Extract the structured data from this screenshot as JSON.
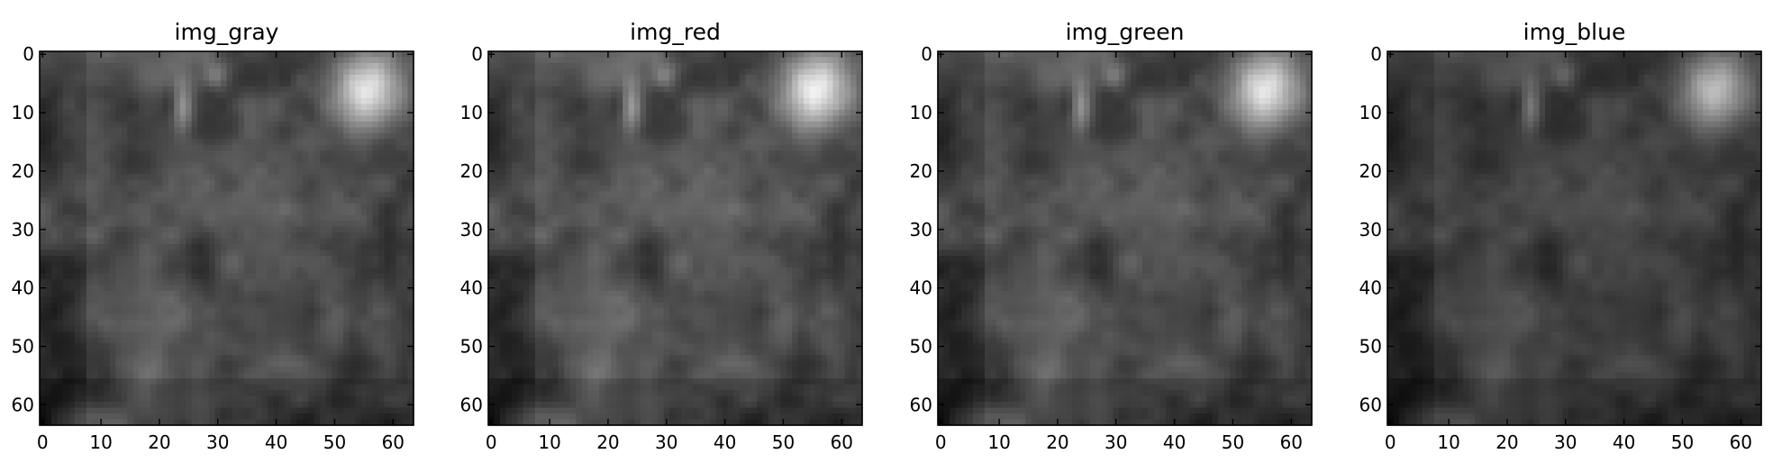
{
  "chart_data": [
    {
      "type": "heatmap",
      "title": "img_gray",
      "colormap": "gray",
      "image_size": [
        64,
        64
      ],
      "xlim": [
        -0.5,
        63.5
      ],
      "ylim": [
        63.5,
        -0.5
      ],
      "xticks": [
        0,
        10,
        20,
        30,
        40,
        50,
        60
      ],
      "yticks": [
        0,
        10,
        20,
        30,
        40,
        50,
        60
      ],
      "xtick_labels": [
        "0",
        "10",
        "20",
        "30",
        "40",
        "50",
        "60"
      ],
      "ytick_labels": [
        "0",
        "10",
        "20",
        "30",
        "40",
        "50",
        "60"
      ],
      "brightness": 1.0
    },
    {
      "type": "heatmap",
      "title": "img_red",
      "colormap": "gray",
      "image_size": [
        64,
        64
      ],
      "xlim": [
        -0.5,
        63.5
      ],
      "ylim": [
        63.5,
        -0.5
      ],
      "xticks": [
        0,
        10,
        20,
        30,
        40,
        50,
        60
      ],
      "yticks": [
        0,
        10,
        20,
        30,
        40,
        50,
        60
      ],
      "xtick_labels": [
        "0",
        "10",
        "20",
        "30",
        "40",
        "50",
        "60"
      ],
      "ytick_labels": [
        "0",
        "10",
        "20",
        "30",
        "40",
        "50",
        "60"
      ],
      "brightness": 1.05
    },
    {
      "type": "heatmap",
      "title": "img_green",
      "colormap": "gray",
      "image_size": [
        64,
        64
      ],
      "xlim": [
        -0.5,
        63.5
      ],
      "ylim": [
        63.5,
        -0.5
      ],
      "xticks": [
        0,
        10,
        20,
        30,
        40,
        50,
        60
      ],
      "yticks": [
        0,
        10,
        20,
        30,
        40,
        50,
        60
      ],
      "xtick_labels": [
        "0",
        "10",
        "20",
        "30",
        "40",
        "50",
        "60"
      ],
      "ytick_labels": [
        "0",
        "10",
        "20",
        "30",
        "40",
        "50",
        "60"
      ],
      "brightness": 1.0
    },
    {
      "type": "heatmap",
      "title": "img_blue",
      "colormap": "gray",
      "image_size": [
        64,
        64
      ],
      "xlim": [
        -0.5,
        63.5
      ],
      "ylim": [
        63.5,
        -0.5
      ],
      "xticks": [
        0,
        10,
        20,
        30,
        40,
        50,
        60
      ],
      "yticks": [
        0,
        10,
        20,
        30,
        40,
        50,
        60
      ],
      "xtick_labels": [
        "0",
        "10",
        "20",
        "30",
        "40",
        "50",
        "60"
      ],
      "ytick_labels": [
        "0",
        "10",
        "20",
        "30",
        "40",
        "50",
        "60"
      ],
      "brightness": 0.82
    }
  ]
}
